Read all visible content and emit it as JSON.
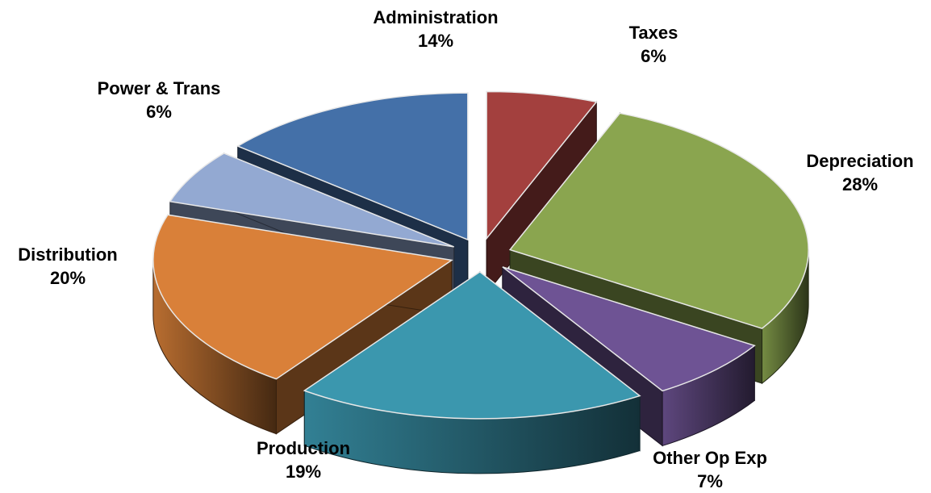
{
  "chart_data": {
    "type": "pie",
    "style": "3d-exploded",
    "start_angle_deg": -90,
    "slices": [
      {
        "name": "Taxes",
        "percent": "6%",
        "value": 6,
        "color": "#A3403E"
      },
      {
        "name": "Depreciation",
        "percent": "28%",
        "value": 28,
        "color": "#8AA54F"
      },
      {
        "name": "Other Op Exp",
        "percent": "7%",
        "value": 7,
        "color": "#6E5394"
      },
      {
        "name": "Production",
        "percent": "19%",
        "value": 19,
        "color": "#3B97AE"
      },
      {
        "name": "Distribution",
        "percent": "20%",
        "value": 20,
        "color": "#D98039"
      },
      {
        "name": "Power & Trans",
        "percent": "6%",
        "value": 6,
        "color": "#93A9D2"
      },
      {
        "name": "Administration",
        "percent": "14%",
        "value": 14,
        "color": "#4470A8"
      }
    ]
  }
}
